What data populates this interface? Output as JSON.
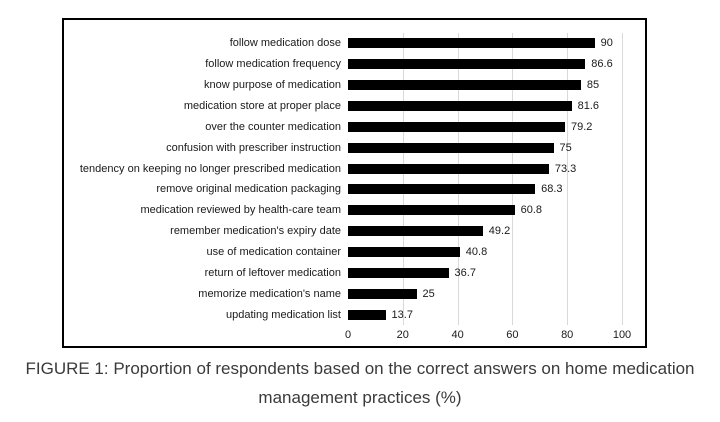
{
  "figure": {
    "caption_line1": "FIGURE 1: Proportion of respondents based on the correct answers on home medication",
    "caption_line2": "management practices (%)"
  },
  "chart_data": {
    "type": "bar",
    "orientation": "horizontal",
    "title": "",
    "xlabel": "",
    "ylabel": "",
    "categories": [
      "follow medication dose",
      "follow medication frequency",
      "know purpose of medication",
      "medication store at proper place",
      "over the counter medication",
      "confusion with prescriber instruction",
      "tendency on keeping no longer prescribed medication",
      "remove original medication packaging",
      "medication reviewed by health-care team",
      "remember medication's expiry date",
      "use of medication container",
      "return of leftover medication",
      "memorize medication's name",
      "updating medication list"
    ],
    "values": [
      90,
      86.6,
      85,
      81.6,
      79.2,
      75,
      73.3,
      68.3,
      60.8,
      49.2,
      40.8,
      36.7,
      25,
      13.7
    ],
    "value_labels": [
      "90",
      "86.6",
      "85",
      "81.6",
      "79.2",
      "75",
      "73.3",
      "68.3",
      "60.8",
      "49.2",
      "40.8",
      "36.7",
      "25",
      "13.7"
    ],
    "x_ticks": [
      "0",
      "20",
      "40",
      "60",
      "80",
      "100"
    ],
    "x_tick_values": [
      0,
      20,
      40,
      60,
      80,
      100
    ],
    "xlim": [
      0,
      100
    ],
    "grid": true,
    "legend": "none",
    "colors": {
      "bar": "#000000",
      "gridline": "#d9d9d9",
      "border": "#000000",
      "text": "#1a1a1a"
    }
  }
}
